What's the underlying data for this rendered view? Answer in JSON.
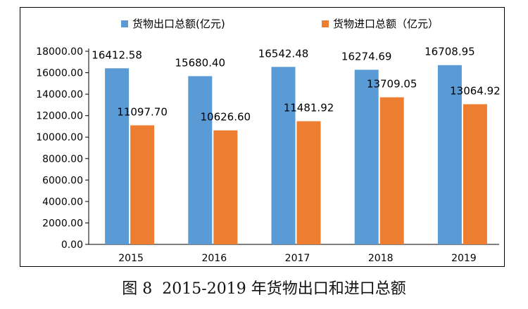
{
  "chart_data": {
    "type": "bar",
    "categories": [
      "2015",
      "2016",
      "2017",
      "2018",
      "2019"
    ],
    "series": [
      {
        "name": "货物出口总额(亿元)",
        "values": [
          16412.58,
          15680.4,
          16542.48,
          16274.69,
          16708.95
        ],
        "color": "#5B9BD5"
      },
      {
        "name": "货物进口总额（亿元）",
        "values": [
          11097.7,
          10626.6,
          11481.92,
          13709.05,
          13064.92
        ],
        "color": "#ED7D31"
      }
    ],
    "y_ticks": [
      "0.00",
      "2000.00",
      "4000.00",
      "6000.00",
      "8000.00",
      "10000.00",
      "12000.00",
      "14000.00",
      "16000.00",
      "18000.00"
    ],
    "data_labels": [
      [
        "16412.58",
        "15680.40",
        "16542.48",
        "16274.69",
        "16708.95"
      ],
      [
        "11097.70",
        "10626.60",
        "11481.92",
        "13709.05",
        "13064.92"
      ]
    ],
    "ylim": [
      0,
      18000
    ],
    "grid": false,
    "legend_position": "top"
  },
  "caption": {
    "figure_label": "图 8",
    "title": "2015-2019 年货物出口和进口总额"
  }
}
